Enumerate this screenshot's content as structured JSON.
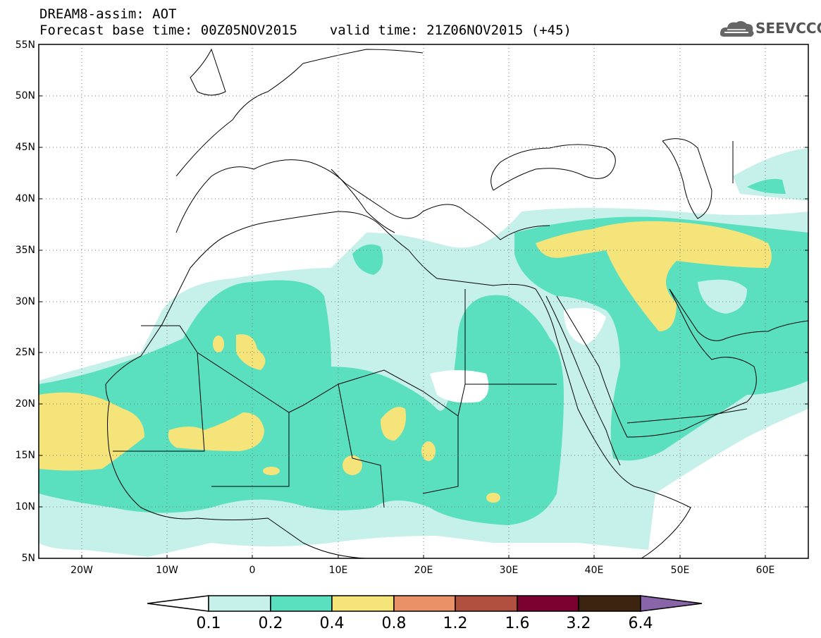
{
  "title": {
    "line1": "DREAM8-assim: AOT",
    "line2": "Forecast base time: 00Z05NOV2015    valid time: 21Z06NOV2015 (+45)"
  },
  "logo": {
    "text": "SEEVCCC",
    "icon": "cloud-icon"
  },
  "map": {
    "variable": "AOT",
    "projection": "equirectangular",
    "lon_range": [
      -25,
      65
    ],
    "lat_range": [
      5,
      55
    ],
    "lat_labels": [
      "55N",
      "50N",
      "45N",
      "40N",
      "35N",
      "30N",
      "25N",
      "20N",
      "15N",
      "10N",
      "5N"
    ],
    "lon_labels": [
      "20W",
      "10W",
      "0",
      "10E",
      "20E",
      "30E",
      "40E",
      "50E",
      "60E"
    ],
    "grid": "dotted"
  },
  "colorbar": {
    "labels": [
      "0.1",
      "0.2",
      "0.4",
      "0.8",
      "1.2",
      "1.6",
      "3.2",
      "6.4"
    ],
    "colors": [
      "#ffffff",
      "#c6f0ea",
      "#5ae0be",
      "#f5e47a",
      "#e99167",
      "#b25040",
      "#7a0030",
      "#3c2410",
      "#8a64a8"
    ]
  }
}
